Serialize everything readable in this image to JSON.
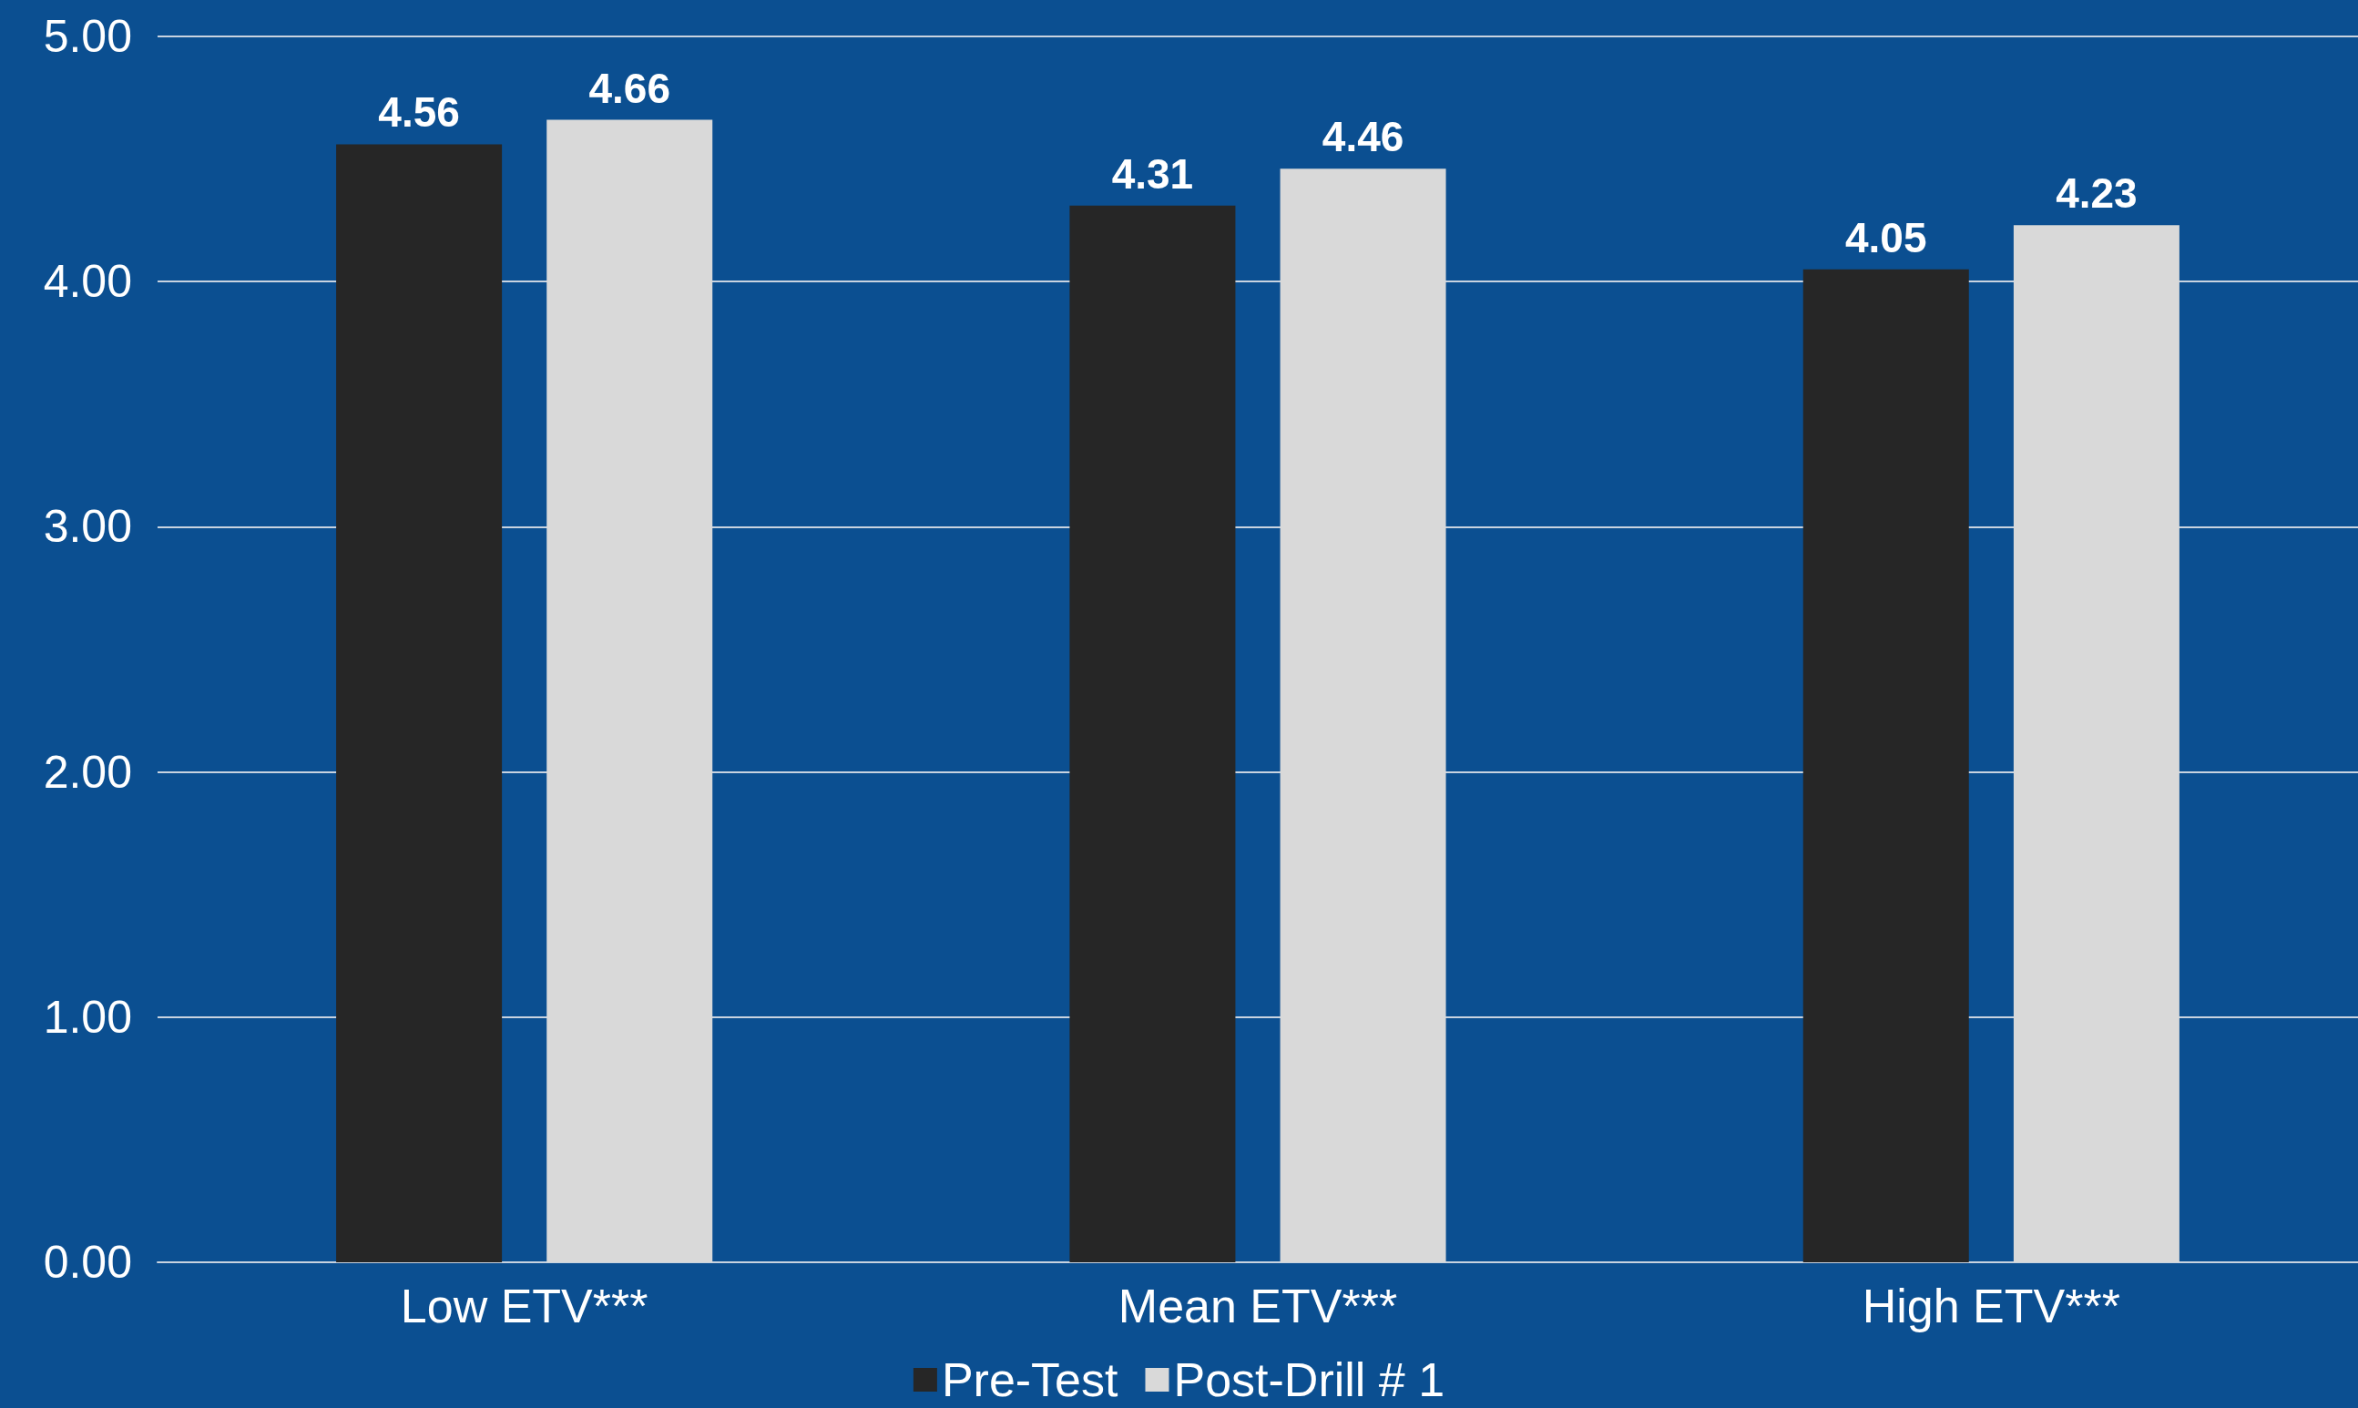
{
  "chart_data": {
    "type": "bar",
    "categories": [
      "Low ETV***",
      "Mean ETV***",
      "High ETV***"
    ],
    "series": [
      {
        "name": "Pre-Test",
        "color": "#262626",
        "values": [
          4.56,
          4.31,
          4.05
        ]
      },
      {
        "name": "Post-Drill # 1",
        "color": "#d9d9d9",
        "values": [
          4.66,
          4.46,
          4.23
        ]
      }
    ],
    "ylim": [
      0,
      5
    ],
    "yticks": [
      {
        "value": 0,
        "label": "0.00"
      },
      {
        "value": 1,
        "label": "1.00"
      },
      {
        "value": 2,
        "label": "2.00"
      },
      {
        "value": 3,
        "label": "3.00"
      },
      {
        "value": 4,
        "label": "4.00"
      },
      {
        "value": 5,
        "label": "5.00"
      }
    ],
    "data_labels": true,
    "grid": "y",
    "legend": "bottom"
  }
}
